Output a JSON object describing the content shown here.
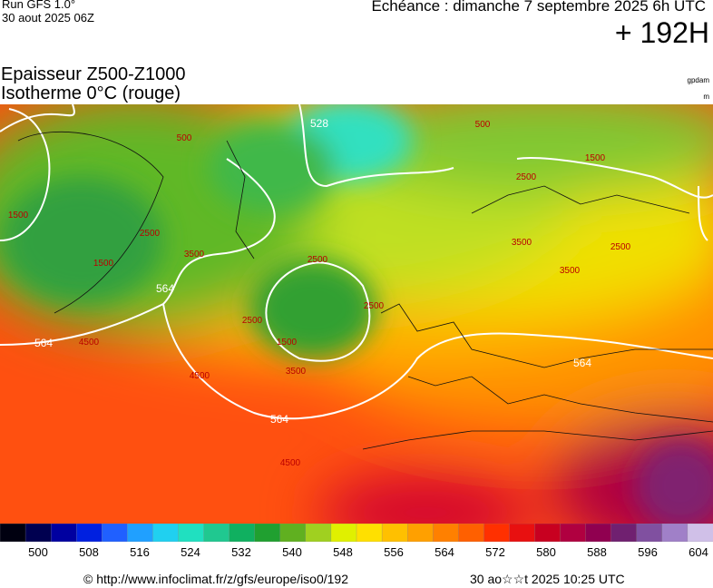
{
  "header": {
    "run": "Run GFS 1.0°",
    "run_date": "30 aout 2025 06Z",
    "forecast": "Echéance : dimanche 7 septembre 2025 6h UTC",
    "lead": "+ 192H"
  },
  "titles": {
    "line1": "Epaisseur Z500-Z1000",
    "line2": "Isotherme 0°C (rouge)",
    "unit1": "gpdam",
    "unit2": "m"
  },
  "map": {
    "contour_labels": [
      "528",
      "564",
      "564",
      "564",
      "564",
      "2500",
      "2500",
      "1500",
      "3500",
      "4500",
      "4500",
      "3500",
      "3500",
      "2500",
      "2500",
      "1500",
      "500",
      "1500",
      "1500",
      "4500",
      "3500",
      "2500",
      "500",
      "2500"
    ]
  },
  "colorbar": {
    "colors": [
      "#000010",
      "#000050",
      "#0000a0",
      "#0020e0",
      "#2060ff",
      "#20a0ff",
      "#20d0f0",
      "#20e0c0",
      "#20c890",
      "#10b060",
      "#20a030",
      "#60b020",
      "#a0d020",
      "#e0f000",
      "#ffe000",
      "#ffc000",
      "#ffa000",
      "#ff8000",
      "#ff6000",
      "#ff3000",
      "#e81010",
      "#c80020",
      "#b00040",
      "#900050",
      "#702070",
      "#8050a0",
      "#a080c8",
      "#d0c0e8"
    ],
    "labels": [
      "500",
      "508",
      "516",
      "524",
      "532",
      "540",
      "548",
      "556",
      "564",
      "572",
      "580",
      "588",
      "596",
      "604"
    ]
  },
  "footer": {
    "url": "© http://www.infoclimat.fr/z/gfs/europe/iso0/192",
    "generated": "30 ao☆☆t 2025 10:25 UTC"
  }
}
